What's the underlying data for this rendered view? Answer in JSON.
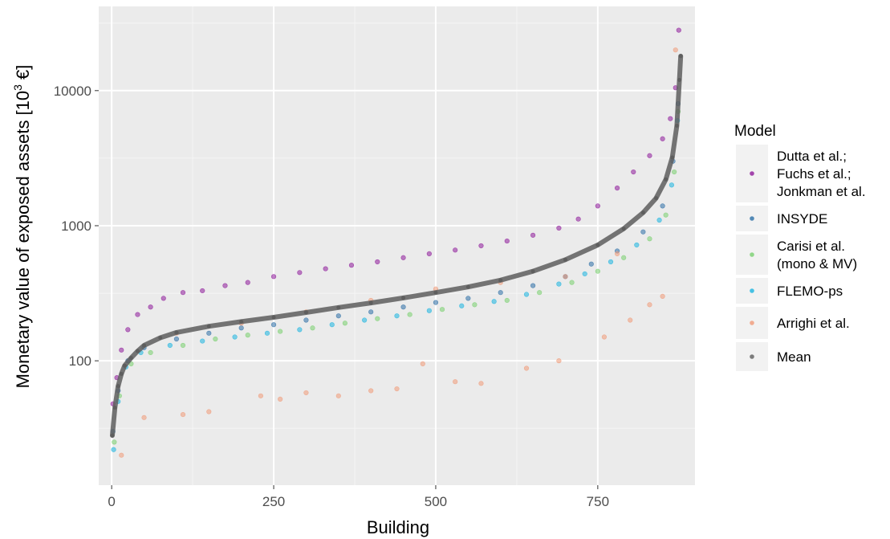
{
  "chart_data": {
    "type": "scatter",
    "title": "",
    "xlabel": "Building",
    "ylabel_prefix": "Monetary value of exposed assets [10",
    "ylabel_sup": "3",
    "ylabel_suffix": " €]",
    "y_scale": "log10",
    "xlim": [
      -20,
      900
    ],
    "ylim": [
      12,
      42000
    ],
    "x_ticks": [
      0,
      250,
      500,
      750
    ],
    "x_tick_labels": [
      "0",
      "250",
      "500",
      "750"
    ],
    "y_ticks": [
      100,
      1000,
      10000
    ],
    "y_tick_labels": [
      "100",
      "1000",
      "10000"
    ],
    "grid": true,
    "legend_position": "right",
    "legend_title": "Model",
    "series": [
      {
        "name": "Dutta et al.; Fuchs et al.; Jonkman et al.",
        "label_lines": [
          "Dutta et al.;",
          "Fuchs et al.;",
          "Jonkman et al."
        ],
        "color": "#8e1a9a",
        "points": [
          [
            2,
            48
          ],
          [
            8,
            75
          ],
          [
            15,
            120
          ],
          [
            25,
            170
          ],
          [
            40,
            220
          ],
          [
            60,
            250
          ],
          [
            80,
            290
          ],
          [
            110,
            320
          ],
          [
            140,
            330
          ],
          [
            175,
            360
          ],
          [
            210,
            380
          ],
          [
            250,
            420
          ],
          [
            290,
            450
          ],
          [
            330,
            480
          ],
          [
            370,
            510
          ],
          [
            410,
            540
          ],
          [
            450,
            580
          ],
          [
            490,
            620
          ],
          [
            530,
            660
          ],
          [
            570,
            710
          ],
          [
            610,
            770
          ],
          [
            650,
            850
          ],
          [
            690,
            960
          ],
          [
            720,
            1120
          ],
          [
            750,
            1400
          ],
          [
            780,
            1900
          ],
          [
            805,
            2500
          ],
          [
            830,
            3300
          ],
          [
            850,
            4400
          ],
          [
            862,
            6200
          ],
          [
            870,
            10500
          ],
          [
            875,
            28000
          ]
        ]
      },
      {
        "name": "INSYDE",
        "label_lines": [
          "INSYDE"
        ],
        "color": "#2b6ea6",
        "points": [
          [
            2,
            30
          ],
          [
            10,
            60
          ],
          [
            25,
            100
          ],
          [
            50,
            125
          ],
          [
            100,
            145
          ],
          [
            150,
            160
          ],
          [
            200,
            175
          ],
          [
            250,
            185
          ],
          [
            300,
            200
          ],
          [
            350,
            215
          ],
          [
            400,
            230
          ],
          [
            450,
            250
          ],
          [
            500,
            270
          ],
          [
            550,
            290
          ],
          [
            600,
            320
          ],
          [
            650,
            360
          ],
          [
            700,
            420
          ],
          [
            740,
            520
          ],
          [
            780,
            650
          ],
          [
            820,
            900
          ],
          [
            850,
            1400
          ],
          [
            866,
            3000
          ],
          [
            874,
            8000
          ]
        ]
      },
      {
        "name": "Carisi et al. (mono & MV)",
        "label_lines": [
          "Carisi et al.",
          "(mono & MV)"
        ],
        "color": "#78d06e",
        "points": [
          [
            4,
            25
          ],
          [
            12,
            55
          ],
          [
            30,
            95
          ],
          [
            60,
            115
          ],
          [
            110,
            130
          ],
          [
            160,
            145
          ],
          [
            210,
            155
          ],
          [
            260,
            165
          ],
          [
            310,
            175
          ],
          [
            360,
            190
          ],
          [
            410,
            205
          ],
          [
            460,
            220
          ],
          [
            510,
            240
          ],
          [
            560,
            260
          ],
          [
            610,
            280
          ],
          [
            660,
            320
          ],
          [
            710,
            380
          ],
          [
            750,
            460
          ],
          [
            790,
            580
          ],
          [
            830,
            800
          ],
          [
            855,
            1200
          ],
          [
            868,
            2500
          ],
          [
            874,
            7000
          ]
        ]
      },
      {
        "name": "FLEMO-ps",
        "label_lines": [
          "FLEMO-ps"
        ],
        "color": "#1ab4e0",
        "points": [
          [
            3,
            22
          ],
          [
            10,
            50
          ],
          [
            22,
            90
          ],
          [
            45,
            115
          ],
          [
            90,
            130
          ],
          [
            140,
            140
          ],
          [
            190,
            150
          ],
          [
            240,
            160
          ],
          [
            290,
            170
          ],
          [
            340,
            185
          ],
          [
            390,
            200
          ],
          [
            440,
            215
          ],
          [
            490,
            235
          ],
          [
            540,
            255
          ],
          [
            590,
            275
          ],
          [
            640,
            310
          ],
          [
            690,
            370
          ],
          [
            730,
            440
          ],
          [
            770,
            540
          ],
          [
            810,
            720
          ],
          [
            845,
            1100
          ],
          [
            864,
            2000
          ],
          [
            873,
            6000
          ]
        ]
      },
      {
        "name": "Arrighi et al.",
        "label_lines": [
          "Arrighi et al."
        ],
        "color": "#f09a78",
        "points": [
          [
            15,
            20
          ],
          [
            50,
            38
          ],
          [
            110,
            40
          ],
          [
            150,
            42
          ],
          [
            230,
            55
          ],
          [
            260,
            52
          ],
          [
            300,
            58
          ],
          [
            350,
            55
          ],
          [
            400,
            60
          ],
          [
            440,
            62
          ],
          [
            480,
            95
          ],
          [
            530,
            70
          ],
          [
            570,
            68
          ],
          [
            640,
            88
          ],
          [
            690,
            100
          ],
          [
            760,
            150
          ],
          [
            800,
            200
          ],
          [
            830,
            260
          ],
          [
            850,
            300
          ],
          [
            870,
            20000
          ],
          [
            100,
            160
          ],
          [
            200,
            190
          ],
          [
            300,
            230
          ],
          [
            400,
            280
          ],
          [
            500,
            340
          ],
          [
            600,
            380
          ],
          [
            700,
            420
          ],
          [
            780,
            620
          ]
        ]
      },
      {
        "name": "Mean",
        "label_lines": [
          "Mean"
        ],
        "color": "#5e5e5e",
        "points": [
          [
            1,
            28
          ],
          [
            5,
            45
          ],
          [
            10,
            65
          ],
          [
            15,
            80
          ],
          [
            20,
            92
          ],
          [
            30,
            105
          ],
          [
            40,
            118
          ],
          [
            50,
            130
          ],
          [
            75,
            148
          ],
          [
            100,
            162
          ],
          [
            150,
            180
          ],
          [
            200,
            195
          ],
          [
            250,
            210
          ],
          [
            300,
            228
          ],
          [
            350,
            248
          ],
          [
            400,
            268
          ],
          [
            450,
            292
          ],
          [
            500,
            320
          ],
          [
            550,
            352
          ],
          [
            600,
            395
          ],
          [
            650,
            460
          ],
          [
            700,
            560
          ],
          [
            750,
            720
          ],
          [
            790,
            950
          ],
          [
            820,
            1250
          ],
          [
            840,
            1600
          ],
          [
            855,
            2200
          ],
          [
            865,
            3200
          ],
          [
            872,
            5500
          ],
          [
            876,
            12000
          ],
          [
            878,
            18000
          ]
        ]
      }
    ]
  }
}
